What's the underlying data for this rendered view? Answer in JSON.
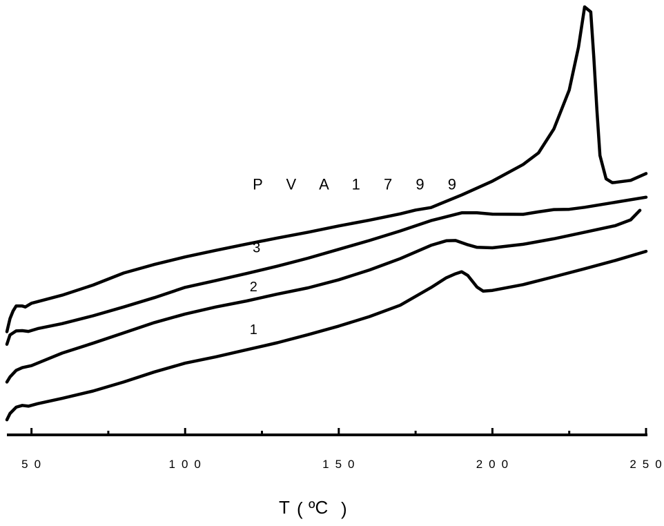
{
  "chart_data": {
    "type": "line",
    "title": "",
    "xlabel": "T ( ℃ )",
    "xlabel_parts": {
      "symbol": "T",
      "open": "(",
      "unit": "ºC",
      "close": ")"
    },
    "ylabel": "",
    "xlim": [
      42,
      250
    ],
    "xticks_major": [
      50,
      100,
      150,
      200,
      250
    ],
    "xtick_labels": [
      "50",
      "100",
      "150",
      "200",
      "250"
    ],
    "xticks_minor": [
      75,
      125,
      175,
      225
    ],
    "y_axis_shown": false,
    "grid": false,
    "series": [
      {
        "name": "1",
        "x": [
          42,
          43,
          45,
          47,
          49,
          52,
          60,
          70,
          80,
          90,
          100,
          110,
          120,
          130,
          140,
          150,
          160,
          170,
          180,
          185,
          188,
          190,
          192,
          195,
          197,
          200,
          210,
          220,
          230,
          240,
          250
        ],
        "y": [
          6,
          8.5,
          11,
          11.7,
          11.4,
          12.4,
          14.5,
          17.4,
          21,
          25,
          28.5,
          31,
          33.8,
          36.6,
          39.8,
          43.2,
          47,
          51.5,
          58.5,
          62.4,
          64,
          64.8,
          63.3,
          58.7,
          57.1,
          57.4,
          59.7,
          62.8,
          66,
          69.3,
          72.9
        ]
      },
      {
        "name": "2",
        "x": [
          42,
          43,
          45,
          47,
          50,
          55,
          60,
          70,
          80,
          90,
          100,
          110,
          120,
          130,
          140,
          150,
          160,
          170,
          180,
          185,
          188,
          192,
          195,
          200,
          210,
          220,
          230,
          240,
          245,
          248
        ],
        "y": [
          21,
          23,
          25.6,
          26.7,
          27.5,
          30,
          32.5,
          36.4,
          40.5,
          44.6,
          48,
          50.8,
          53.2,
          55.9,
          58.4,
          61.6,
          65.5,
          70,
          75.3,
          77.1,
          77.2,
          75.5,
          74.5,
          74.3,
          75.7,
          77.9,
          80.5,
          83.1,
          85.4,
          89.2
        ]
      },
      {
        "name": "3",
        "x": [
          42,
          43,
          45,
          47,
          49,
          52,
          60,
          70,
          80,
          90,
          100,
          110,
          120,
          130,
          140,
          150,
          160,
          170,
          180,
          190,
          195,
          200,
          210,
          215,
          220,
          225,
          230,
          240,
          250
        ],
        "y": [
          36,
          39.7,
          41.3,
          41.4,
          41.1,
          42.2,
          44.2,
          47.3,
          50.8,
          54.5,
          58.6,
          61.3,
          64.1,
          67,
          70.2,
          73.7,
          77.2,
          81,
          85.1,
          88.2,
          88.2,
          87.7,
          87.6,
          88.6,
          89.5,
          89.6,
          90.4,
          92.4,
          94.4
        ]
      },
      {
        "name": "PVA 1799",
        "x": [
          42,
          43,
          44,
          45,
          47,
          48,
          50,
          55,
          60,
          70,
          80,
          90,
          100,
          110,
          120,
          130,
          140,
          150,
          160,
          170,
          175,
          180,
          190,
          200,
          210,
          215,
          220,
          225,
          228,
          230,
          232,
          233,
          234,
          235,
          237,
          239,
          240,
          245,
          250
        ],
        "y": [
          41,
          46.2,
          49.2,
          51.2,
          51.2,
          50.8,
          52.3,
          53.9,
          55.5,
          59.5,
          64.3,
          67.7,
          70.7,
          73.3,
          75.8,
          78.2,
          80.5,
          83,
          85.3,
          87.8,
          89.3,
          90.3,
          95.3,
          100.8,
          107.4,
          112,
          121.5,
          137,
          154,
          170,
          168,
          150,
          129,
          111,
          101.7,
          100.2,
          100.3,
          101.1,
          103.8
        ]
      }
    ],
    "curve_labels": [
      {
        "series": "1",
        "text": "1",
        "x": 121,
        "y": 40
      },
      {
        "series": "2",
        "text": "2",
        "x": 121,
        "y": 57
      },
      {
        "series": "3",
        "text": "3",
        "x": 122,
        "y": 72.5
      },
      {
        "series": "PVA 1799",
        "text": "P V A 1 7 9 9",
        "x": 122,
        "y": 97.5
      }
    ]
  }
}
